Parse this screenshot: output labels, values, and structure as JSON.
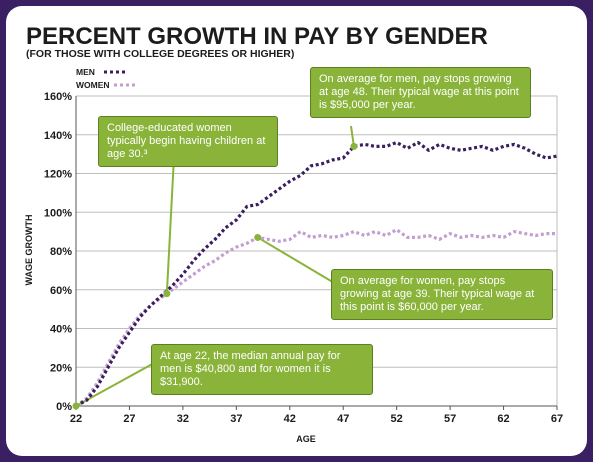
{
  "title": "PERCENT GROWTH IN PAY BY GENDER",
  "subtitle": "(FOR THOSE WITH COLLEGE DEGREES OR HIGHER)",
  "colors": {
    "men": "#3a1f5e",
    "women": "#c39fd1",
    "callout": "#8ab33a",
    "callout_border": "#5d7f1e",
    "frame": "#3b1f63"
  },
  "annotations": {
    "women_children": "College-educated women typically begin having children at age 30.³",
    "men_peak": "On average for men, pay stops growing at age 48. Their typical wage at this point is $95,000 per year.",
    "women_peak": "On average for women, pay stops growing at age 39. Their typical wage at this point is $60,000 per year.",
    "age22": "At age 22, the median annual pay for men is $40,800 and for women it is $31,900."
  },
  "chart_data": {
    "type": "line",
    "xlabel": "AGE",
    "ylabel": "WAGE GROWTH",
    "xlim": [
      22,
      67
    ],
    "ylim": [
      0,
      160
    ],
    "x_ticks": [
      "22",
      "27",
      "32",
      "37",
      "42",
      "47",
      "52",
      "57",
      "62",
      "67"
    ],
    "y_ticks": [
      "0%",
      "20%",
      "40%",
      "60%",
      "80%",
      "100%",
      "120%",
      "140%",
      "160%"
    ],
    "grid": true,
    "legend_position": "top-left",
    "x": [
      22,
      23,
      24,
      25,
      26,
      27,
      28,
      29,
      30,
      31,
      32,
      33,
      34,
      35,
      36,
      37,
      38,
      39,
      40,
      41,
      42,
      43,
      44,
      45,
      46,
      47,
      48,
      49,
      50,
      51,
      52,
      53,
      54,
      55,
      56,
      57,
      58,
      59,
      60,
      61,
      62,
      63,
      64,
      65,
      66,
      67
    ],
    "series": [
      {
        "name": "MEN",
        "values": [
          0,
          3,
          10,
          20,
          30,
          38,
          46,
          52,
          57,
          62,
          68,
          75,
          81,
          86,
          92,
          96,
          103,
          104,
          108,
          112,
          116,
          119,
          124,
          125,
          127,
          128,
          134,
          135,
          134,
          134,
          136,
          133,
          136,
          132,
          135,
          133,
          132,
          133,
          134,
          132,
          134,
          135,
          133,
          130,
          128,
          129
        ]
      },
      {
        "name": "WOMEN",
        "values": [
          0,
          4,
          12,
          22,
          32,
          40,
          47,
          52,
          56,
          60,
          64,
          68,
          72,
          75,
          79,
          82,
          84,
          87,
          86,
          85,
          86,
          90,
          87,
          88,
          87,
          88,
          90,
          88,
          90,
          88,
          91,
          87,
          87,
          88,
          86,
          89,
          87,
          88,
          87,
          88,
          87,
          90,
          89,
          88,
          89,
          89
        ]
      }
    ],
    "callout_points": {
      "women_children_age": 30.5,
      "men_peak_age": 48,
      "women_peak_age": 39,
      "start_age": 22
    }
  }
}
